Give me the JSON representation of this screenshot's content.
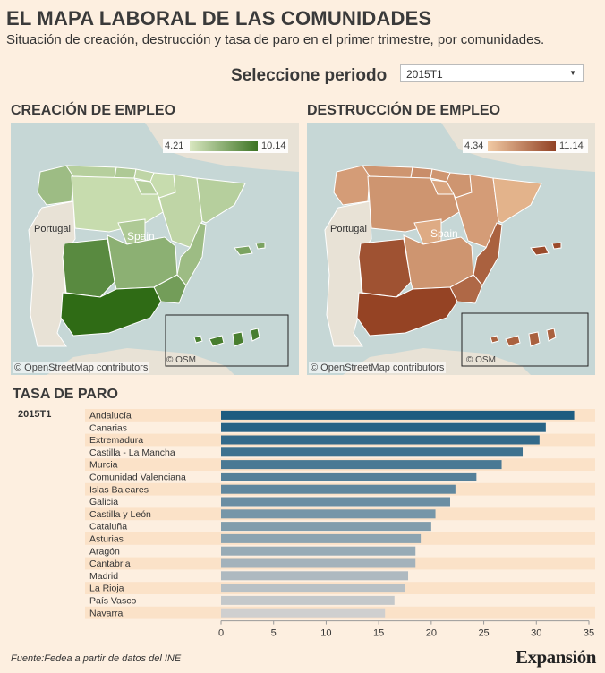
{
  "header": {
    "title": "EL MAPA LABORAL DE LAS COMUNIDADES",
    "subtitle": "Situación de creación, destrucción y tasa de paro en el primer trimestre, por comunidades."
  },
  "period": {
    "label": "Seleccione periodo",
    "selected": "2015T1"
  },
  "maps": [
    {
      "title": "CREACIÓN DE EMPLEO",
      "legend_min": "4.21",
      "legend_max": "10.14",
      "color_low": "#d8e8bf",
      "color_high": "#2f6b15",
      "portugal_label": "Portugal",
      "spain_label": "Spain",
      "credit": "© OpenStreetMap contributors",
      "inset_credit": "© OSM"
    },
    {
      "title": "DESTRUCCIÓN DE EMPLEO",
      "legend_min": "4.34",
      "legend_max": "11.14",
      "color_low": "#f3c9a0",
      "color_high": "#8a3416",
      "portugal_label": "Portugal",
      "spain_label": "Spain",
      "credit": "© OpenStreetMap contributors",
      "inset_credit": "© OSM"
    }
  ],
  "paro": {
    "title": "TASA DE PARO",
    "period": "2015T1"
  },
  "chart_data": {
    "type": "bar",
    "orientation": "horizontal",
    "categories": [
      "Andalucía",
      "Canarias",
      "Extremadura",
      "Castilla - La Mancha",
      "Murcia",
      "Comunidad Valenciana",
      "Islas Baleares",
      "Galicia",
      "Castilla y León",
      "Cataluña",
      "Asturias",
      "Aragón",
      "Cantabria",
      "Madrid",
      "La Rioja",
      "País Vasco",
      "Navarra"
    ],
    "values": [
      33.6,
      30.9,
      30.3,
      28.7,
      26.7,
      24.3,
      22.3,
      21.8,
      20.4,
      20.0,
      19.0,
      18.5,
      18.5,
      17.8,
      17.5,
      16.5,
      15.6
    ],
    "xlim": [
      0,
      35
    ],
    "xticks": [
      0,
      5,
      10,
      15,
      20,
      25,
      30,
      35
    ],
    "color_high": "#1d5c80",
    "color_low": "#cfcfcf"
  },
  "footer": {
    "source": "Fuente:Fedea a partir de datos del INE",
    "brand": "Expansión"
  }
}
